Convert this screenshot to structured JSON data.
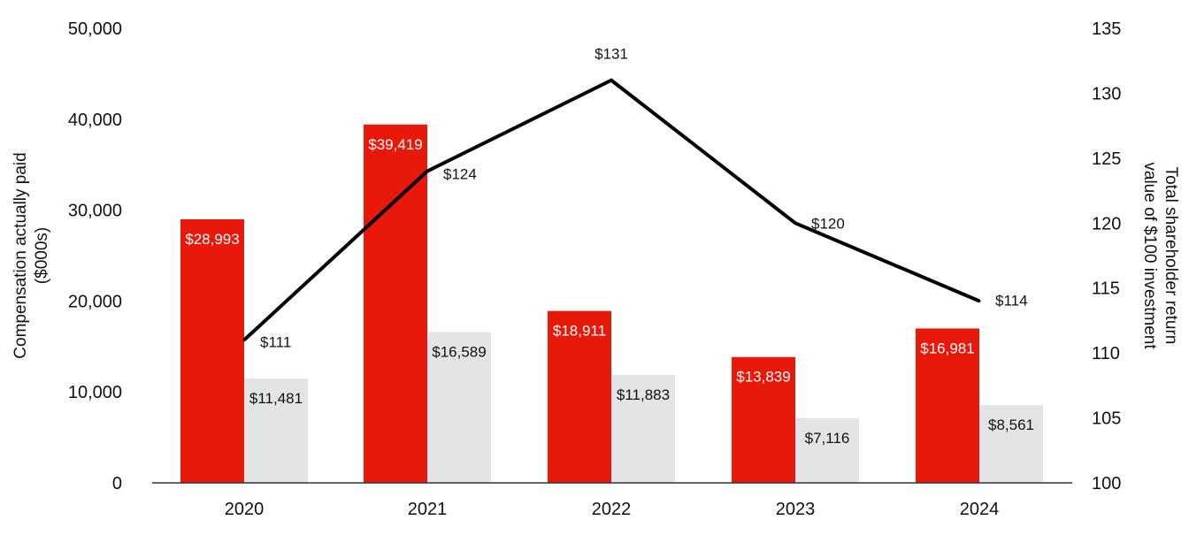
{
  "chart_data": {
    "type": "bar+line",
    "categories": [
      "2020",
      "2021",
      "2022",
      "2023",
      "2024"
    ],
    "y_left": {
      "label_line1": "Compensation actually paid",
      "label_line2": "($000s)",
      "lim": [
        0,
        50000
      ],
      "ticks": [
        "0",
        "10,000",
        "20,000",
        "30,000",
        "40,000",
        "50,000"
      ],
      "tick_values": [
        0,
        10000,
        20000,
        30000,
        40000,
        50000
      ]
    },
    "y_right": {
      "label_line1": "Total shareholder return",
      "label_line2": "value of $100 investment",
      "lim": [
        100,
        135
      ],
      "ticks": [
        "100",
        "105",
        "110",
        "115",
        "120",
        "125",
        "130",
        "135"
      ],
      "tick_values": [
        100,
        105,
        110,
        115,
        120,
        125,
        130,
        135
      ]
    },
    "series": [
      {
        "name": "Compensation actually paid (series 1)",
        "kind": "bar",
        "axis": "left",
        "color": "#e8190a",
        "label_color": "#ffffff",
        "values": [
          28993,
          39419,
          18911,
          13839,
          16981
        ],
        "labels": [
          "$28,993",
          "$39,419",
          "$18,911",
          "$13,839",
          "$16,981"
        ]
      },
      {
        "name": "Compensation actually paid (series 2)",
        "kind": "bar",
        "axis": "left",
        "color": "#e3e4e5",
        "label_color": "#111111",
        "values": [
          11481,
          16589,
          11883,
          7116,
          8561
        ],
        "labels": [
          "$11,481",
          "$16,589",
          "$11,883",
          "$7,116",
          "$8,561"
        ]
      },
      {
        "name": "Total shareholder return",
        "kind": "line",
        "axis": "right",
        "color": "#000000",
        "values": [
          111,
          124,
          131,
          120,
          114
        ],
        "labels": [
          "$111",
          "$124",
          "$131",
          "$120",
          "$114"
        ]
      }
    ]
  }
}
